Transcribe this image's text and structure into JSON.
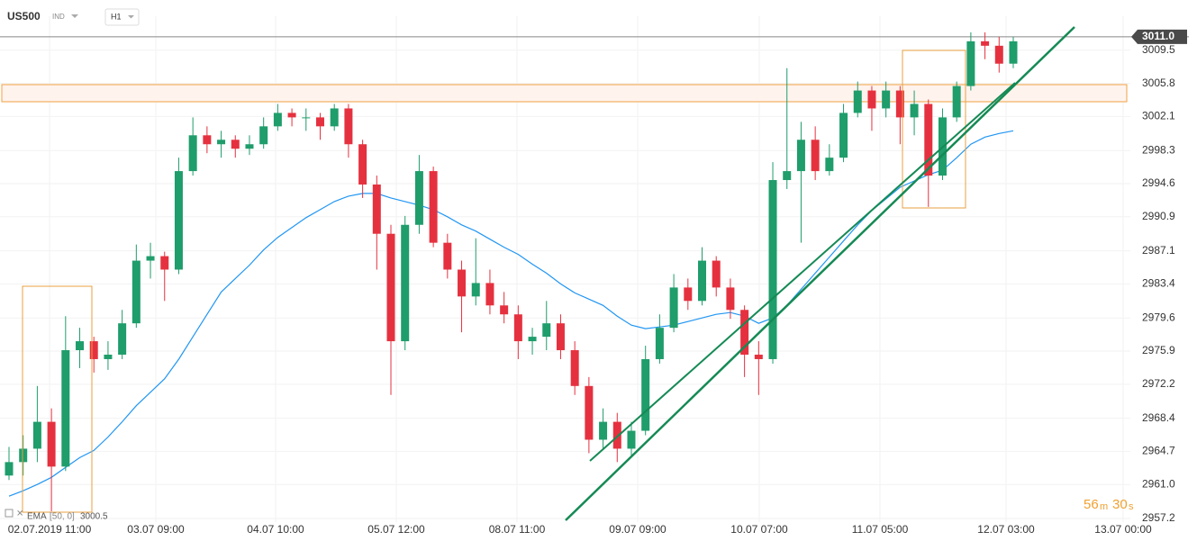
{
  "header": {
    "symbol": "US500",
    "kind": "IND",
    "interval": "H1"
  },
  "chart_data": {
    "type": "candlestick",
    "ylim": [
      2956.8,
      3013.3
    ],
    "yticks": [
      {
        "value": 3011,
        "label": "3011.0"
      },
      3009.5,
      3005.8,
      3002.1,
      2998.3,
      2994.6,
      2990.9,
      2987.1,
      2983.4,
      2979.6,
      2975.9,
      2972.2,
      2968.4,
      2964.7,
      {
        "value": 2961,
        "label": "2961.0"
      },
      2957.2
    ],
    "x_labels": [
      "02.07.2019 11:00",
      "03.07 09:00",
      "04.07 10:00",
      "05.07 12:00",
      "08.07 11:00",
      "09.07 09:00",
      "10.07 07:00",
      "11.07 05:00",
      "12.07 03:00",
      "13.07 00:00"
    ],
    "up_color": "#1f9d6b",
    "down_color": "#e5313f",
    "ema_color": "#2196f3",
    "candles": [
      [
        2962.0,
        2965.2,
        2961.5,
        2963.5
      ],
      [
        2963.5,
        2966.5,
        2962.0,
        2965.0
      ],
      [
        2965.0,
        2972.0,
        2963.5,
        2968.0
      ],
      [
        2968.0,
        2969.5,
        2958.0,
        2963.0
      ],
      [
        2963.0,
        2979.8,
        2962.5,
        2976.0
      ],
      [
        2976.0,
        2978.5,
        2974.0,
        2977.0
      ],
      [
        2977.0,
        2977.5,
        2973.5,
        2975.0
      ],
      [
        2975.0,
        2977.0,
        2973.8,
        2975.5
      ],
      [
        2975.5,
        2980.5,
        2975.0,
        2979.0
      ],
      [
        2979.0,
        2987.8,
        2978.5,
        2986.0
      ],
      [
        2986.0,
        2988.0,
        2984.0,
        2986.5
      ],
      [
        2986.5,
        2987.0,
        2981.5,
        2985.0
      ],
      [
        2985.0,
        2997.5,
        2984.5,
        2996.0
      ],
      [
        2996.0,
        3002.0,
        2995.5,
        3000.0
      ],
      [
        3000.0,
        3001.0,
        2998.0,
        2999.0
      ],
      [
        2999.0,
        3000.5,
        2997.5,
        2999.5
      ],
      [
        2999.5,
        3000.0,
        2997.5,
        2998.5
      ],
      [
        2998.5,
        3000.0,
        2997.8,
        2999.0
      ],
      [
        2999.0,
        3002.0,
        2998.5,
        3001.0
      ],
      [
        3001.0,
        3003.5,
        3000.5,
        3002.5
      ],
      [
        3002.5,
        3003.0,
        3001.0,
        3002.0
      ],
      [
        3002.0,
        3003.0,
        3000.5,
        3002.0
      ],
      [
        3002.0,
        3002.5,
        2999.5,
        3001.0
      ],
      [
        3001.0,
        3003.5,
        3000.5,
        3003.0
      ],
      [
        3003.0,
        3003.5,
        2997.5,
        2999.0
      ],
      [
        2999.0,
        2999.5,
        2993.0,
        2994.5
      ],
      [
        2994.5,
        2995.5,
        2985.0,
        2989.0
      ],
      [
        2989.0,
        2990.0,
        2971.0,
        2977.0
      ],
      [
        2977.0,
        2991.0,
        2976.0,
        2990.0
      ],
      [
        2990.0,
        2997.8,
        2989.0,
        2996.0
      ],
      [
        2996.0,
        2996.5,
        2987.5,
        2988.0
      ],
      [
        2988.0,
        2989.0,
        2984.0,
        2985.0
      ],
      [
        2985.0,
        2986.0,
        2978.0,
        2982.0
      ],
      [
        2982.0,
        2988.5,
        2981.0,
        2983.5
      ],
      [
        2983.5,
        2985.0,
        2980.0,
        2981.0
      ],
      [
        2981.0,
        2982.5,
        2979.0,
        2980.0
      ],
      [
        2980.0,
        2981.0,
        2975.0,
        2977.0
      ],
      [
        2977.0,
        2978.5,
        2975.5,
        2977.5
      ],
      [
        2977.5,
        2981.5,
        2976.0,
        2979.0
      ],
      [
        2979.0,
        2980.0,
        2975.0,
        2976.0
      ],
      [
        2976.0,
        2977.0,
        2971.0,
        2972.0
      ],
      [
        2972.0,
        2973.0,
        2964.5,
        2966.0
      ],
      [
        2966.0,
        2969.5,
        2965.0,
        2968.0
      ],
      [
        2968.0,
        2969.0,
        2963.5,
        2965.0
      ],
      [
        2965.0,
        2968.0,
        2964.0,
        2967.0
      ],
      [
        2967.0,
        2976.5,
        2966.5,
        2975.0
      ],
      [
        2975.0,
        2980.0,
        2974.5,
        2978.5
      ],
      [
        2978.5,
        2984.5,
        2978.0,
        2983.0
      ],
      [
        2983.0,
        2984.0,
        2980.5,
        2981.5
      ],
      [
        2981.5,
        2987.5,
        2981.0,
        2986.0
      ],
      [
        2986.0,
        2986.5,
        2982.0,
        2983.0
      ],
      [
        2983.0,
        2984.0,
        2979.5,
        2980.5
      ],
      [
        2980.5,
        2981.0,
        2973.0,
        2975.5
      ],
      [
        2975.5,
        2977.0,
        2971.0,
        2975.0
      ],
      [
        2975.0,
        2997.0,
        2974.5,
        2995.0
      ],
      [
        2995.0,
        3007.5,
        2994.0,
        2996.0
      ],
      [
        2996.0,
        3001.5,
        2988.0,
        2999.5
      ],
      [
        2999.5,
        3001.0,
        2995.0,
        2996.0
      ],
      [
        2996.0,
        2999.0,
        2995.5,
        2997.5
      ],
      [
        2997.5,
        3003.5,
        2997.0,
        3002.5
      ],
      [
        3002.5,
        3006.0,
        3002.0,
        3005.0
      ],
      [
        3005.0,
        3005.5,
        3000.5,
        3003.0
      ],
      [
        3003.0,
        3006.0,
        3002.0,
        3005.0
      ],
      [
        3005.0,
        3005.5,
        2999.0,
        3002.0
      ],
      [
        3002.0,
        3005.0,
        3000.0,
        3003.5
      ],
      [
        3003.5,
        3004.0,
        2992.0,
        2995.5
      ],
      [
        2995.5,
        3003.0,
        2995.0,
        3002.0
      ],
      [
        3002.0,
        3006.0,
        3001.5,
        3005.5
      ],
      [
        3005.5,
        3011.5,
        3005.0,
        3010.5
      ],
      [
        3010.5,
        3011.5,
        3008.5,
        3010.0
      ],
      [
        3010.0,
        3011.0,
        3007.0,
        3008.0
      ],
      [
        3008.0,
        3011.0,
        3007.5,
        3010.5
      ]
    ],
    "ema": [
      2959.7,
      2960.3,
      2961.0,
      2961.8,
      2962.9,
      2964.0,
      2964.8,
      2966.3,
      2968.0,
      2969.8,
      2971.3,
      2972.8,
      2975.0,
      2977.5,
      2980.0,
      2982.5,
      2984.0,
      2985.5,
      2987.2,
      2988.6,
      2989.7,
      2990.8,
      2991.7,
      2992.6,
      2993.2,
      2993.5,
      2993.5,
      2993.0,
      2992.6,
      2992.2,
      2991.7,
      2990.9,
      2990.0,
      2989.3,
      2988.4,
      2987.5,
      2986.7,
      2985.6,
      2984.6,
      2983.4,
      2982.4,
      2981.7,
      2981.0,
      2979.8,
      2978.8,
      2978.4,
      2978.6,
      2978.8,
      2979.2,
      2979.6,
      2980.0,
      2980.2,
      2979.8,
      2979.0,
      2979.6,
      2981.0,
      2982.8,
      2984.6,
      2986.4,
      2988.2,
      2990.0,
      2991.6,
      2992.9,
      2994.2,
      2994.9,
      2995.6,
      2996.1,
      2997.5,
      2999.0,
      2999.8,
      3000.2,
      3000.5
    ],
    "indicator": {
      "name": "EMA",
      "params": "[50, 0]",
      "value": 3000.5
    },
    "countdown": [
      "56",
      "m",
      "30",
      "s"
    ]
  }
}
